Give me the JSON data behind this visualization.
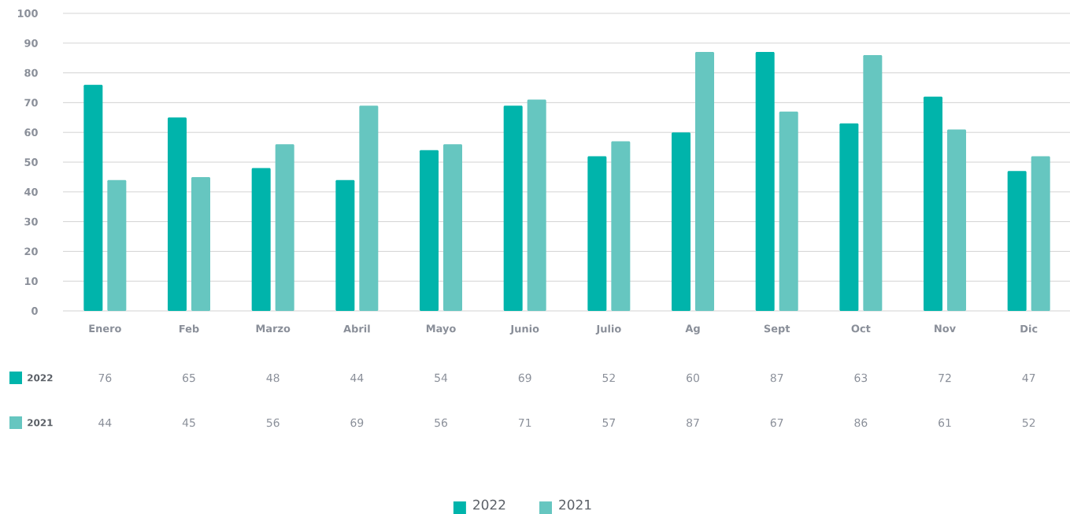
{
  "chart_data": {
    "type": "bar",
    "categories": [
      "Enero",
      "Feb",
      "Marzo",
      "Abril",
      "Mayo",
      "Junio",
      "Julio",
      "Ag",
      "Sept",
      "Oct",
      "Nov",
      "Dic"
    ],
    "series": [
      {
        "name": "2022",
        "color": "#00b4ab",
        "values": [
          76,
          65,
          48,
          44,
          54,
          69,
          52,
          60,
          87,
          63,
          72,
          47
        ]
      },
      {
        "name": "2021",
        "color": "#66c6c0",
        "values": [
          44,
          45,
          56,
          69,
          56,
          71,
          57,
          87,
          67,
          86,
          61,
          52
        ]
      }
    ],
    "ylim": [
      0,
      100
    ],
    "yticks": [
      0,
      10,
      20,
      30,
      40,
      50,
      60,
      70,
      80,
      90,
      100
    ],
    "grid": "y",
    "legend": "bottom",
    "data_labels": true
  }
}
